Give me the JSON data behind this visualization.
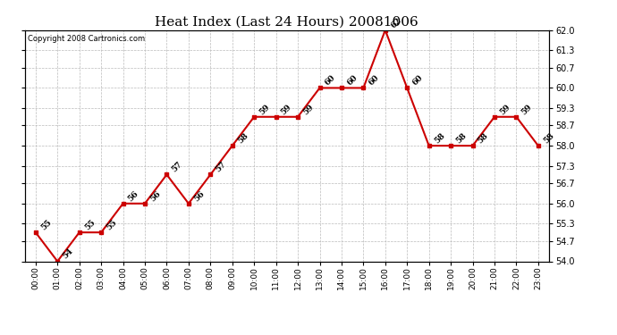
{
  "title": "Heat Index (Last 24 Hours) 20081006",
  "copyright": "Copyright 2008 Cartronics.com",
  "hours": [
    "00:00",
    "01:00",
    "02:00",
    "03:00",
    "04:00",
    "05:00",
    "06:00",
    "07:00",
    "08:00",
    "09:00",
    "10:00",
    "11:00",
    "12:00",
    "13:00",
    "14:00",
    "15:00",
    "16:00",
    "17:00",
    "18:00",
    "19:00",
    "20:00",
    "21:00",
    "22:00",
    "23:00"
  ],
  "values": [
    55,
    54,
    55,
    55,
    56,
    56,
    57,
    56,
    57,
    58,
    59,
    59,
    59,
    60,
    60,
    60,
    62,
    60,
    58,
    58,
    58,
    59,
    59,
    58
  ],
  "ylim": [
    54.0,
    62.0
  ],
  "yticks": [
    54.0,
    54.7,
    55.3,
    56.0,
    56.7,
    57.3,
    58.0,
    58.7,
    59.3,
    60.0,
    60.7,
    61.3,
    62.0
  ],
  "ytick_labels": [
    "54.0",
    "54.7",
    "55.3",
    "56.0",
    "56.7",
    "57.3",
    "58.0",
    "58.7",
    "59.3",
    "60.0",
    "60.7",
    "61.3",
    "62.0"
  ],
  "line_color": "#cc0000",
  "marker_color": "#cc0000",
  "grid_color": "#bbbbbb",
  "bg_color": "#ffffff",
  "title_fontsize": 11,
  "annotation_fontsize": 6.5
}
